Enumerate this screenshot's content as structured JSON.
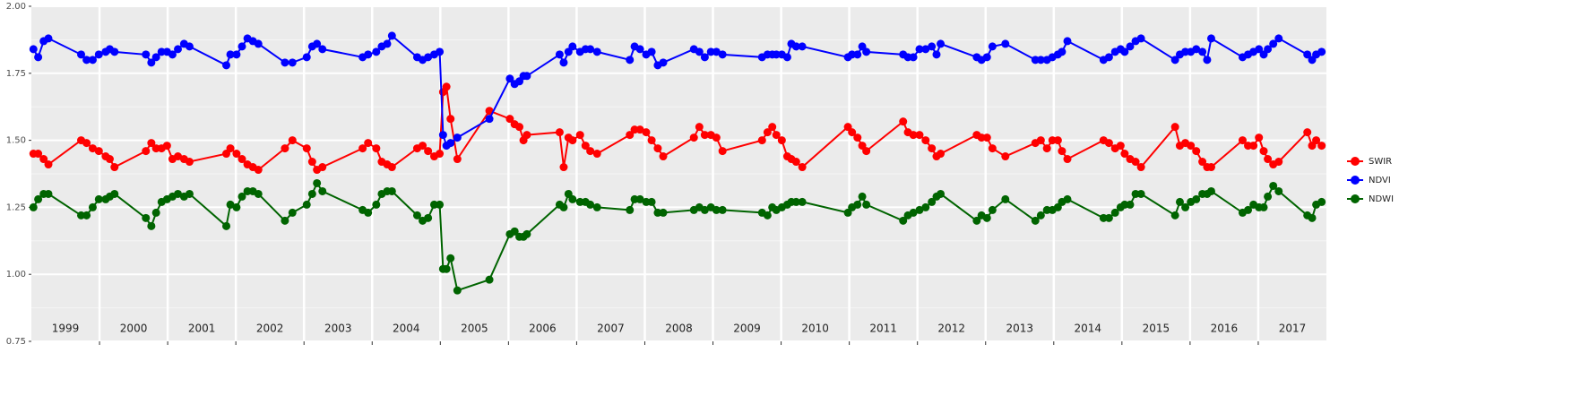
{
  "chart_data": {
    "type": "line",
    "x": [
      1999.03,
      1999.1,
      1999.18,
      1999.25,
      1999.73,
      1999.81,
      1999.9,
      1999.99,
      2000.09,
      2000.15,
      2000.22,
      2000.68,
      2000.76,
      2000.83,
      2000.91,
      2000.99,
      2001.07,
      2001.15,
      2001.24,
      2001.32,
      2001.86,
      2001.92,
      2002.01,
      2002.09,
      2002.17,
      2002.25,
      2002.33,
      2002.72,
      2002.83,
      2003.04,
      2003.12,
      2003.19,
      2003.27,
      2003.86,
      2003.94,
      2004.06,
      2004.14,
      2004.22,
      2004.29,
      2004.66,
      2004.74,
      2004.82,
      2004.91,
      2004.99,
      2005.04,
      2005.09,
      2005.15,
      2005.25,
      2005.72,
      2006.02,
      2006.09,
      2006.16,
      2006.22,
      2006.27,
      2006.75,
      2006.81,
      2006.88,
      2006.94,
      2007.05,
      2007.13,
      2007.2,
      2007.3,
      2007.78,
      2007.85,
      2007.93,
      2008.02,
      2008.1,
      2008.19,
      2008.27,
      2008.72,
      2008.8,
      2008.88,
      2008.97,
      2009.05,
      2009.14,
      2009.72,
      2009.8,
      2009.87,
      2009.93,
      2010.01,
      2010.09,
      2010.15,
      2010.22,
      2010.31,
      2010.98,
      2011.04,
      2011.12,
      2011.19,
      2011.25,
      2011.79,
      2011.86,
      2011.94,
      2012.03,
      2012.12,
      2012.21,
      2012.28,
      2012.34,
      2012.87,
      2012.94,
      2013.02,
      2013.1,
      2013.29,
      2013.73,
      2013.81,
      2013.9,
      2013.98,
      2014.06,
      2014.12,
      2014.2,
      2014.73,
      2014.81,
      2014.9,
      2014.98,
      2015.04,
      2015.12,
      2015.2,
      2015.28,
      2015.78,
      2015.85,
      2015.93,
      2016.01,
      2016.09,
      2016.18,
      2016.25,
      2016.31,
      2016.77,
      2016.85,
      2016.93,
      2017.01,
      2017.08,
      2017.14,
      2017.22,
      2017.3,
      2017.72,
      2017.79,
      2017.85,
      2017.93
    ],
    "series": [
      {
        "name": "SWIR",
        "color": "#ff0000",
        "values": [
          1.45,
          1.45,
          1.43,
          1.41,
          1.5,
          1.49,
          1.47,
          1.46,
          1.44,
          1.43,
          1.4,
          1.46,
          1.49,
          1.47,
          1.47,
          1.48,
          1.43,
          1.44,
          1.43,
          1.42,
          1.45,
          1.47,
          1.45,
          1.43,
          1.41,
          1.4,
          1.39,
          1.47,
          1.5,
          1.47,
          1.42,
          1.39,
          1.4,
          1.47,
          1.49,
          1.47,
          1.42,
          1.41,
          1.4,
          1.47,
          1.48,
          1.46,
          1.44,
          1.45,
          1.68,
          1.7,
          1.58,
          1.43,
          1.61,
          1.58,
          1.56,
          1.55,
          1.5,
          1.52,
          1.53,
          1.4,
          1.51,
          1.5,
          1.52,
          1.48,
          1.46,
          1.45,
          1.52,
          1.54,
          1.54,
          1.53,
          1.5,
          1.47,
          1.44,
          1.51,
          1.55,
          1.52,
          1.52,
          1.51,
          1.46,
          1.5,
          1.53,
          1.55,
          1.52,
          1.5,
          1.44,
          1.43,
          1.42,
          1.4,
          1.55,
          1.53,
          1.51,
          1.48,
          1.46,
          1.57,
          1.53,
          1.52,
          1.52,
          1.5,
          1.47,
          1.44,
          1.45,
          1.52,
          1.51,
          1.51,
          1.47,
          1.44,
          1.49,
          1.5,
          1.47,
          1.5,
          1.5,
          1.46,
          1.43,
          1.5,
          1.49,
          1.47,
          1.48,
          1.45,
          1.43,
          1.42,
          1.4,
          1.55,
          1.48,
          1.49,
          1.48,
          1.46,
          1.42,
          1.4,
          1.4,
          1.5,
          1.48,
          1.48,
          1.51,
          1.46,
          1.43,
          1.41,
          1.42,
          1.53,
          1.48,
          1.5,
          1.48
        ]
      },
      {
        "name": "NDVI",
        "color": "#0000ff",
        "values": [
          1.84,
          1.81,
          1.87,
          1.88,
          1.82,
          1.8,
          1.8,
          1.82,
          1.83,
          1.84,
          1.83,
          1.82,
          1.79,
          1.81,
          1.83,
          1.83,
          1.82,
          1.84,
          1.86,
          1.85,
          1.78,
          1.82,
          1.82,
          1.85,
          1.88,
          1.87,
          1.86,
          1.79,
          1.79,
          1.81,
          1.85,
          1.86,
          1.84,
          1.81,
          1.82,
          1.83,
          1.85,
          1.86,
          1.89,
          1.81,
          1.8,
          1.81,
          1.82,
          1.83,
          1.52,
          1.48,
          1.49,
          1.51,
          1.58,
          1.73,
          1.71,
          1.72,
          1.74,
          1.74,
          1.82,
          1.79,
          1.83,
          1.85,
          1.83,
          1.84,
          1.84,
          1.83,
          1.8,
          1.85,
          1.84,
          1.82,
          1.83,
          1.78,
          1.79,
          1.84,
          1.83,
          1.81,
          1.83,
          1.83,
          1.82,
          1.81,
          1.82,
          1.82,
          1.82,
          1.82,
          1.81,
          1.86,
          1.85,
          1.85,
          1.81,
          1.82,
          1.82,
          1.85,
          1.83,
          1.82,
          1.81,
          1.81,
          1.84,
          1.84,
          1.85,
          1.82,
          1.86,
          1.81,
          1.8,
          1.81,
          1.85,
          1.86,
          1.8,
          1.8,
          1.8,
          1.81,
          1.82,
          1.83,
          1.87,
          1.8,
          1.81,
          1.83,
          1.84,
          1.83,
          1.85,
          1.87,
          1.88,
          1.8,
          1.82,
          1.83,
          1.83,
          1.84,
          1.83,
          1.8,
          1.88,
          1.81,
          1.82,
          1.83,
          1.84,
          1.82,
          1.84,
          1.86,
          1.88,
          1.82,
          1.8,
          1.82,
          1.83
        ]
      },
      {
        "name": "NDWI",
        "color": "#006400",
        "values": [
          1.25,
          1.28,
          1.3,
          1.3,
          1.22,
          1.22,
          1.25,
          1.28,
          1.28,
          1.29,
          1.3,
          1.21,
          1.18,
          1.23,
          1.27,
          1.28,
          1.29,
          1.3,
          1.29,
          1.3,
          1.18,
          1.26,
          1.25,
          1.29,
          1.31,
          1.31,
          1.3,
          1.2,
          1.23,
          1.26,
          1.3,
          1.34,
          1.31,
          1.24,
          1.23,
          1.26,
          1.3,
          1.31,
          1.31,
          1.22,
          1.2,
          1.21,
          1.26,
          1.26,
          1.02,
          1.02,
          1.06,
          0.94,
          0.98,
          1.15,
          1.16,
          1.14,
          1.14,
          1.15,
          1.26,
          1.25,
          1.3,
          1.28,
          1.27,
          1.27,
          1.26,
          1.25,
          1.24,
          1.28,
          1.28,
          1.27,
          1.27,
          1.23,
          1.23,
          1.24,
          1.25,
          1.24,
          1.25,
          1.24,
          1.24,
          1.23,
          1.22,
          1.25,
          1.24,
          1.25,
          1.26,
          1.27,
          1.27,
          1.27,
          1.23,
          1.25,
          1.26,
          1.29,
          1.26,
          1.2,
          1.22,
          1.23,
          1.24,
          1.25,
          1.27,
          1.29,
          1.3,
          1.2,
          1.22,
          1.21,
          1.24,
          1.28,
          1.2,
          1.22,
          1.24,
          1.24,
          1.25,
          1.27,
          1.28,
          1.21,
          1.21,
          1.23,
          1.25,
          1.26,
          1.26,
          1.3,
          1.3,
          1.22,
          1.27,
          1.25,
          1.27,
          1.28,
          1.3,
          1.3,
          1.31,
          1.23,
          1.24,
          1.26,
          1.25,
          1.25,
          1.29,
          1.33,
          1.31,
          1.22,
          1.21,
          1.26,
          1.27
        ]
      }
    ],
    "xlim": [
      1999,
      2018
    ],
    "xgrid": [
      2000,
      2001,
      2002,
      2003,
      2004,
      2005,
      2006,
      2007,
      2008,
      2009,
      2010,
      2011,
      2012,
      2013,
      2014,
      2015,
      2016,
      2017
    ],
    "xticks": [
      {
        "value": 1999.5,
        "label": "1999"
      },
      {
        "value": 2000.5,
        "label": "2000"
      },
      {
        "value": 2001.5,
        "label": "2001"
      },
      {
        "value": 2002.5,
        "label": "2002"
      },
      {
        "value": 2003.5,
        "label": "2003"
      },
      {
        "value": 2004.5,
        "label": "2004"
      },
      {
        "value": 2005.5,
        "label": "2005"
      },
      {
        "value": 2006.5,
        "label": "2006"
      },
      {
        "value": 2007.5,
        "label": "2007"
      },
      {
        "value": 2008.5,
        "label": "2008"
      },
      {
        "value": 2009.5,
        "label": "2009"
      },
      {
        "value": 2010.5,
        "label": "2010"
      },
      {
        "value": 2011.5,
        "label": "2011"
      },
      {
        "value": 2012.5,
        "label": "2012"
      },
      {
        "value": 2013.5,
        "label": "2013"
      },
      {
        "value": 2014.5,
        "label": "2014"
      },
      {
        "value": 2015.5,
        "label": "2015"
      },
      {
        "value": 2016.5,
        "label": "2016"
      },
      {
        "value": 2017.5,
        "label": "2017"
      }
    ],
    "ylim": [
      0.75,
      2.0
    ],
    "yticks": [
      {
        "value": 0.75,
        "label": "0.75"
      },
      {
        "value": 1.0,
        "label": "1.00"
      },
      {
        "value": 1.25,
        "label": "1.25"
      },
      {
        "value": 1.5,
        "label": "1.50"
      },
      {
        "value": 1.75,
        "label": "1.75"
      },
      {
        "value": 2.0,
        "label": "2.00"
      }
    ],
    "yminor": [
      0.875,
      1.125,
      1.375,
      1.625,
      1.875
    ],
    "grid": true,
    "legend": "right"
  }
}
